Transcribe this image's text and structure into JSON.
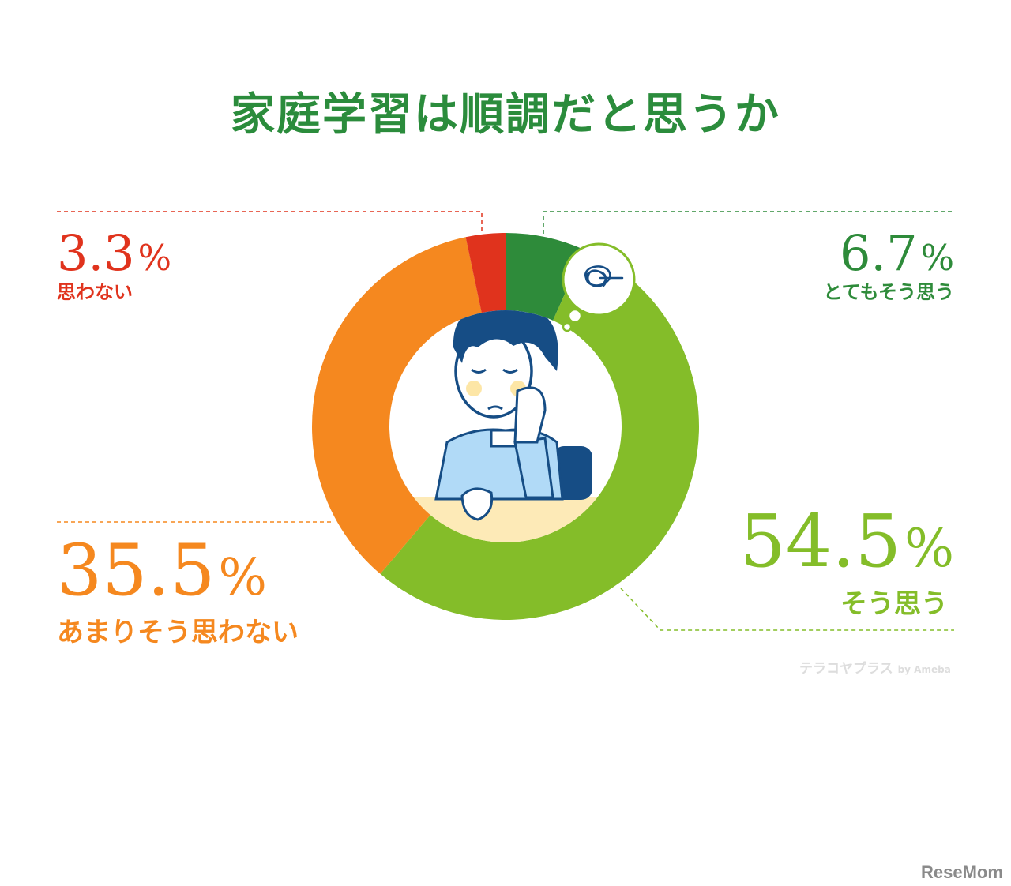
{
  "title": "家庭学習は順調だと思うか",
  "percent_unit": "%",
  "colors": {
    "title": "#2b8c3c",
    "とてもそう思う": "#2e8b3a",
    "そう思う": "#84bd29",
    "あまりそう思わない": "#f5881f",
    "思わない": "#e0331d"
  },
  "chart_data": {
    "type": "pie",
    "donut": true,
    "title": "家庭学習は順調だと思うか",
    "categories": [
      "とてもそう思う",
      "そう思う",
      "あまりそう思わない",
      "思わない"
    ],
    "values": [
      6.7,
      54.5,
      35.5,
      3.3
    ],
    "value_labels": [
      "6.7",
      "54.5",
      "35.5",
      "3.3"
    ],
    "colors": [
      "#2e8b3a",
      "#84bd29",
      "#f5881f",
      "#e0331d"
    ],
    "start_angle": "12 o'clock",
    "direction": "clockwise",
    "legend": "none"
  },
  "watermarks": {
    "source": "テラコヤプラス",
    "source_by": "by Ameba",
    "site": "ReseMom"
  },
  "illustration": {
    "subject": "tired-student-icon",
    "thought": "scribble-icon"
  }
}
